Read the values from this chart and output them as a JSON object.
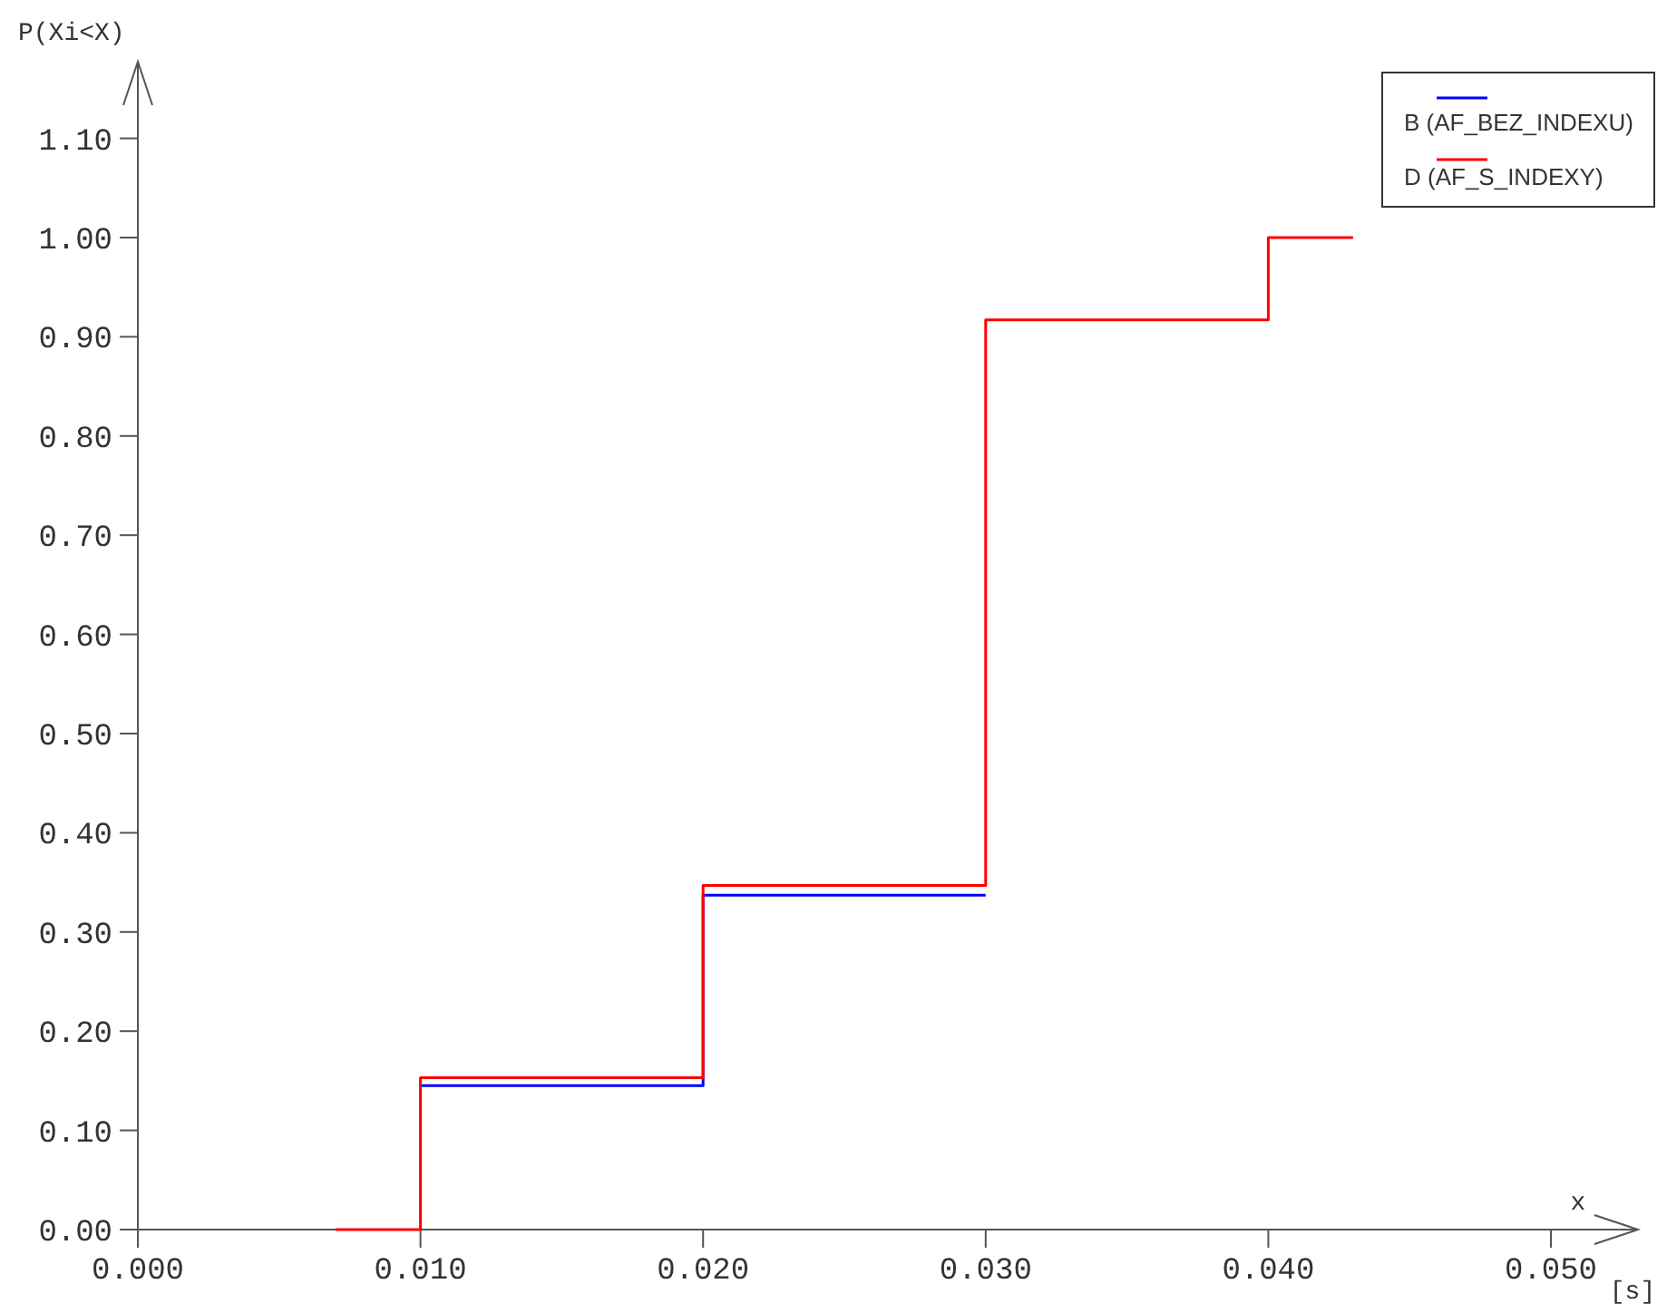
{
  "chart_data": {
    "type": "step",
    "ylabel": "P(Xi<X)",
    "xlabel": "x",
    "annotations": [
      "[s]"
    ],
    "x": [
      0.007,
      0.01,
      0.02,
      0.03,
      0.04,
      0.043
    ],
    "series": [
      {
        "name": "B (AF_BEZ_INDEXU)",
        "color": "#0000ff",
        "x": [
          0.01,
          0.02,
          0.03
        ],
        "values": [
          0.145,
          0.337,
          0.337
        ]
      },
      {
        "name": "D (AF_S_INDEXY)",
        "color": "#ff0000",
        "values": [
          0,
          0.153,
          0.347,
          0.917,
          1.0,
          1.0
        ]
      }
    ],
    "xlim": [
      0,
      0.05
    ],
    "ylim": [
      0,
      1.1
    ],
    "xticks": [
      {
        "value": 0,
        "label": "0.000"
      },
      {
        "value": 0.01,
        "label": "0.010"
      },
      {
        "value": 0.02,
        "label": "0.020"
      },
      {
        "value": 0.03,
        "label": "0.030"
      },
      {
        "value": 0.04,
        "label": "0.040"
      },
      {
        "value": 0.05,
        "label": "0.050"
      }
    ],
    "yticks": [
      {
        "value": 0,
        "label": "0.00"
      },
      {
        "value": 0.1,
        "label": "0.10"
      },
      {
        "value": 0.2,
        "label": "0.20"
      },
      {
        "value": 0.3,
        "label": "0.30"
      },
      {
        "value": 0.4,
        "label": "0.40"
      },
      {
        "value": 0.5,
        "label": "0.50"
      },
      {
        "value": 0.6,
        "label": "0.60"
      },
      {
        "value": 0.7,
        "label": "0.70"
      },
      {
        "value": 0.8,
        "label": "0.80"
      },
      {
        "value": 0.9,
        "label": "0.90"
      },
      {
        "value": 1.0,
        "label": "1.00"
      },
      {
        "value": 1.1,
        "label": "1.10"
      }
    ],
    "legend": "top right",
    "grid": false
  }
}
